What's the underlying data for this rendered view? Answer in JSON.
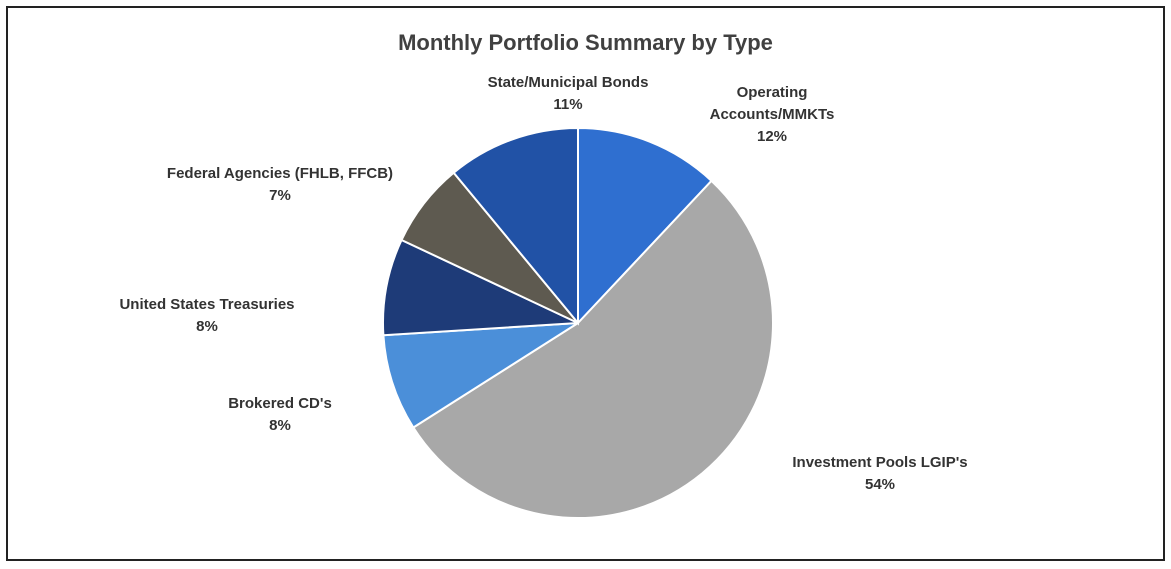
{
  "chart_data": {
    "type": "pie",
    "title": "Monthly Portfolio Summary by Type",
    "categories": [
      "Operating Accounts/MMKTs",
      "Investment Pools LGIP's",
      "Brokered CD's",
      "United States Treasuries",
      "Federal Agencies (FHLB, FFCB)",
      "State/Municipal Bonds"
    ],
    "values": [
      12,
      54,
      8,
      8,
      7,
      11
    ],
    "value_labels": [
      "12%",
      "54%",
      "8%",
      "8%",
      "7%",
      "11%"
    ],
    "colors": [
      "#2f6fd0",
      "#a8a8a8",
      "#4b8fd9",
      "#1e3b78",
      "#5e5a50",
      "#2152a6"
    ]
  }
}
